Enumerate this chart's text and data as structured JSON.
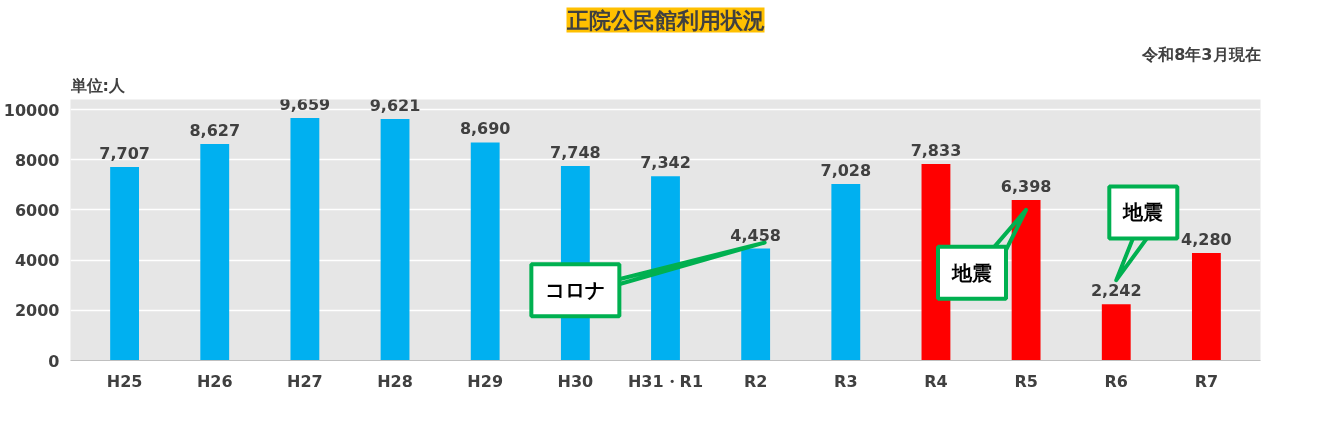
{
  "chart_data": {
    "type": "bar",
    "title": "正院公民館利用状況",
    "categories": [
      "H25",
      "H26",
      "H27",
      "H28",
      "H29",
      "H30",
      "H31・R1",
      "R2",
      "R3",
      "R4",
      "R5",
      "R6",
      "R7"
    ],
    "values": [
      7707,
      8627,
      9659,
      9621,
      8690,
      7748,
      7342,
      4458,
      7028,
      7833,
      6398,
      2242,
      4280
    ],
    "colors": [
      "#00b0f0",
      "#00b0f0",
      "#00b0f0",
      "#00b0f0",
      "#00b0f0",
      "#00b0f0",
      "#00b0f0",
      "#00b0f0",
      "#00b0f0",
      "#ff0000",
      "#ff0000",
      "#ff0000",
      "#ff0000"
    ],
    "value_labels": [
      "7,707",
      "8,627",
      "9,659",
      "9,621",
      "8,690",
      "7,748",
      "7,342",
      "4,458",
      "7,028",
      "7,833",
      "6,398",
      "2,242",
      "4,280"
    ],
    "ylim": [
      0,
      10400
    ],
    "yticks": [
      0,
      2000,
      4000,
      6000,
      8000,
      10000
    ],
    "grid": "y",
    "annotations": [
      "単位:人",
      "令和8年3月現在",
      "コロナ",
      "地震",
      "地震"
    ]
  }
}
